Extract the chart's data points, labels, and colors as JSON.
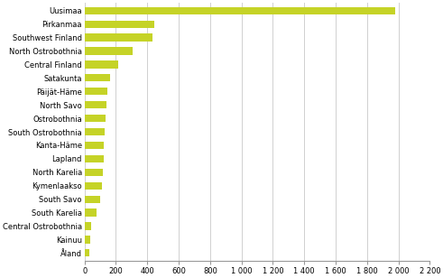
{
  "categories": [
    "Åland",
    "Kainuu",
    "Central Ostrobothnia",
    "South Karelia",
    "South Savo",
    "Kymenlaakso",
    "North Karelia",
    "Lapland",
    "Kanta-Häme",
    "South Ostrobothnia",
    "Ostrobothnia",
    "North Savo",
    "Päijät-Häme",
    "Satakunta",
    "Central Finland",
    "North Ostrobothnia",
    "Southwest Finland",
    "Pirkanmaa",
    "Uusimaa"
  ],
  "values": [
    28,
    35,
    42,
    75,
    100,
    110,
    115,
    120,
    125,
    130,
    135,
    140,
    145,
    165,
    215,
    305,
    435,
    445,
    1980
  ],
  "bar_color": "#c5d327",
  "xlim": [
    0,
    2200
  ],
  "xticks": [
    0,
    200,
    400,
    600,
    800,
    1000,
    1200,
    1400,
    1600,
    1800,
    2000,
    2200
  ],
  "xtick_labels": [
    "0",
    "200",
    "400",
    "600",
    "800",
    "1 000",
    "1 200",
    "1 400",
    "1 600",
    "1 800",
    "2 000",
    "2 200"
  ],
  "grid_color": "#d0d0d0",
  "label_fontsize": 6.0,
  "tick_fontsize": 6.0,
  "bar_height": 0.55,
  "background_color": "#ffffff",
  "figwidth": 4.91,
  "figheight": 3.08,
  "dpi": 100
}
